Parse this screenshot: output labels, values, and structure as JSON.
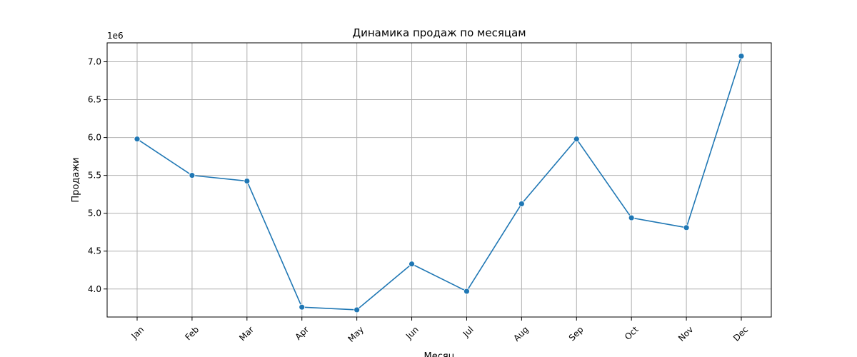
{
  "chart_data": {
    "type": "line",
    "title": "Динамика продаж по месяцам",
    "xlabel": "Месяц",
    "ylabel": "Продажи",
    "y_offset_label": "1e6",
    "categories": [
      "Jan",
      "Feb",
      "Mar",
      "Apr",
      "May",
      "Jun",
      "Jul",
      "Aug",
      "Sep",
      "Oct",
      "Nov",
      "Dec"
    ],
    "series": [
      {
        "values": [
          5980000,
          5500000,
          5425000,
          3760000,
          3725000,
          4330000,
          3970000,
          5125000,
          5980000,
          4940000,
          4810000,
          7075000
        ],
        "color": "#1f77b4",
        "marker": "circle"
      }
    ],
    "ylim": [
      3630000,
      7250000
    ],
    "yticks": [
      4000000,
      4500000,
      5000000,
      5500000,
      6000000,
      6500000,
      7000000
    ],
    "ytick_labels": [
      "4.0",
      "4.5",
      "5.0",
      "5.5",
      "6.0",
      "6.5",
      "7.0"
    ],
    "xtick_rotation": 45,
    "grid": true,
    "grid_color": "#b0b0b0",
    "legend": "none"
  }
}
